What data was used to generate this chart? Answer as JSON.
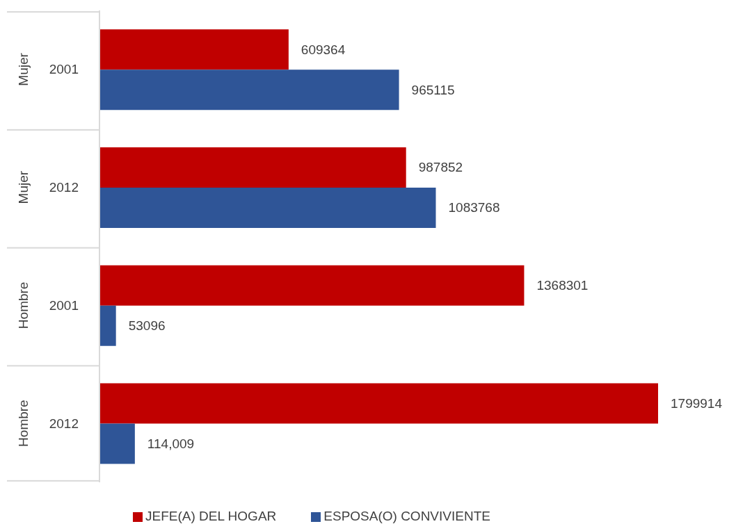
{
  "chart_data": {
    "type": "bar",
    "orientation": "horizontal",
    "categories": [
      "2001",
      "2012",
      "2001",
      "2012"
    ],
    "annotations": [
      "Mujer",
      "Mujer",
      "Hombre",
      "Hombre"
    ],
    "series": [
      {
        "name": "JEFE(A) DEL HOGAR",
        "color": "#c00000",
        "values": [
          609364,
          987852,
          1368301,
          1799914
        ],
        "value_labels": [
          "609364",
          "987852",
          "1368301",
          "1799914"
        ]
      },
      {
        "name": "ESPOSA(O) CONVIVIENTE",
        "color": "#2f5597",
        "values": [
          965115,
          1083768,
          53096,
          114009
        ],
        "value_labels": [
          "965115",
          "1083768",
          "53096",
          "114,009"
        ]
      }
    ],
    "legend": "bottom"
  }
}
